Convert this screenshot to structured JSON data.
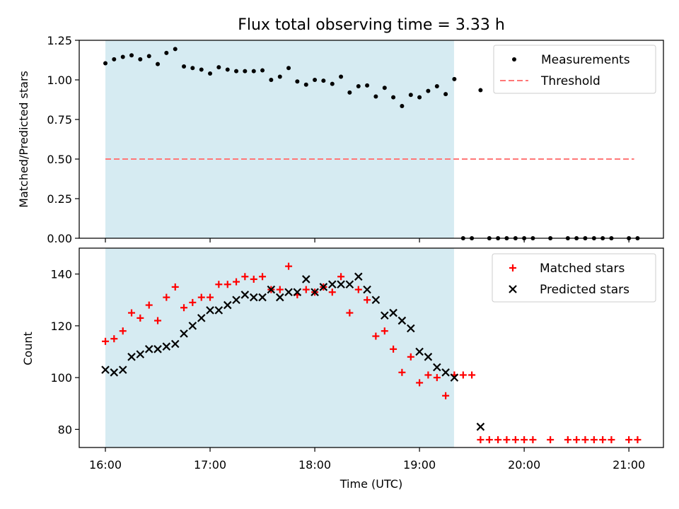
{
  "colors": {
    "shade": "#add8e6",
    "measurement": "#000000",
    "threshold": "#ff7777",
    "matched": "#ff0000",
    "predicted": "#000000"
  },
  "chart_data": [
    {
      "type": "scatter",
      "title": "Flux total observing time = 3.33 h",
      "ylabel": "Matched/Predicted stars",
      "xlabel": "",
      "xlim": [
        15.75,
        21.33
      ],
      "ylim": [
        0,
        1.25
      ],
      "yticks": [
        0,
        0.25,
        0.5,
        0.75,
        1.0,
        1.25
      ],
      "ytick_labels": [
        "0.00",
        "0.25",
        "0.50",
        "0.75",
        "1.00",
        "1.25"
      ],
      "shaded_span": [
        16.0,
        19.33
      ],
      "legend_position": "top-right",
      "threshold": {
        "name": "Threshold",
        "y": 0.5,
        "x_range": [
          16.0,
          21.05
        ]
      },
      "series": [
        {
          "name": "Measurements",
          "x": [
            16.0,
            16.083,
            16.167,
            16.25,
            16.333,
            16.417,
            16.5,
            16.583,
            16.667,
            16.75,
            16.833,
            16.917,
            17.0,
            17.083,
            17.167,
            17.25,
            17.333,
            17.417,
            17.5,
            17.583,
            17.667,
            17.75,
            17.833,
            17.917,
            18.0,
            18.083,
            18.167,
            18.25,
            18.333,
            18.417,
            18.5,
            18.583,
            18.667,
            18.75,
            18.833,
            18.917,
            19.0,
            19.083,
            19.167,
            19.25,
            19.333,
            19.417,
            19.5,
            19.583,
            19.667,
            19.75,
            19.833,
            19.917,
            20.0,
            20.083,
            20.25,
            20.417,
            20.5,
            20.583,
            20.667,
            20.75,
            20.833,
            21.0,
            21.083
          ],
          "y": [
            1.105,
            1.13,
            1.145,
            1.155,
            1.13,
            1.15,
            1.1,
            1.17,
            1.195,
            1.085,
            1.075,
            1.065,
            1.04,
            1.08,
            1.065,
            1.055,
            1.055,
            1.055,
            1.06,
            1.0,
            1.02,
            1.075,
            0.99,
            0.97,
            1.0,
            0.995,
            0.975,
            1.02,
            0.92,
            0.96,
            0.965,
            0.895,
            0.95,
            0.89,
            0.835,
            0.905,
            0.89,
            0.93,
            0.96,
            0.91,
            1.005,
            0,
            0,
            0.935,
            0,
            0,
            0,
            0,
            0,
            0,
            0,
            0,
            0,
            0,
            0,
            0,
            0,
            0,
            0
          ]
        }
      ]
    },
    {
      "type": "scatter",
      "title": "",
      "ylabel": "Count",
      "xlabel": "Time (UTC)",
      "xlim": [
        15.75,
        21.33
      ],
      "ylim": [
        73,
        150
      ],
      "yticks": [
        80,
        100,
        120,
        140
      ],
      "ytick_labels": [
        "80",
        "100",
        "120",
        "140"
      ],
      "xticks": [
        16,
        17,
        18,
        19,
        20,
        21
      ],
      "xtick_labels": [
        "16:00",
        "17:00",
        "18:00",
        "19:00",
        "20:00",
        "21:00"
      ],
      "shaded_span": [
        16.0,
        19.33
      ],
      "legend_position": "top-right",
      "series": [
        {
          "name": "Matched stars",
          "x": [
            16.0,
            16.083,
            16.167,
            16.25,
            16.333,
            16.417,
            16.5,
            16.583,
            16.667,
            16.75,
            16.833,
            16.917,
            17.0,
            17.083,
            17.167,
            17.25,
            17.333,
            17.417,
            17.5,
            17.583,
            17.667,
            17.75,
            17.833,
            17.917,
            18.0,
            18.083,
            18.167,
            18.25,
            18.333,
            18.417,
            18.5,
            18.583,
            18.667,
            18.75,
            18.833,
            18.917,
            19.0,
            19.083,
            19.167,
            19.25,
            19.333,
            19.417,
            19.5,
            19.583,
            19.667,
            19.75,
            19.833,
            19.917,
            20.0,
            20.083,
            20.25,
            20.417,
            20.5,
            20.583,
            20.667,
            20.75,
            20.833,
            21.0,
            21.083
          ],
          "y": [
            114,
            115,
            118,
            125,
            123,
            128,
            122,
            131,
            135,
            127,
            129,
            131,
            131,
            136,
            136,
            137,
            139,
            138,
            139,
            134,
            134,
            143,
            132,
            134,
            133,
            135,
            133,
            139,
            125,
            134,
            130,
            116,
            118,
            111,
            102,
            108,
            98,
            101,
            100,
            93,
            101,
            101,
            101,
            76,
            76,
            76,
            76,
            76,
            76,
            76,
            76,
            76,
            76,
            76,
            76,
            76,
            76,
            76,
            76
          ]
        },
        {
          "name": "Predicted stars",
          "x": [
            16.0,
            16.083,
            16.167,
            16.25,
            16.333,
            16.417,
            16.5,
            16.583,
            16.667,
            16.75,
            16.833,
            16.917,
            17.0,
            17.083,
            17.167,
            17.25,
            17.333,
            17.417,
            17.5,
            17.583,
            17.667,
            17.75,
            17.833,
            17.917,
            18.0,
            18.083,
            18.167,
            18.25,
            18.333,
            18.417,
            18.5,
            18.583,
            18.667,
            18.75,
            18.833,
            18.917,
            19.0,
            19.083,
            19.167,
            19.25,
            19.333,
            19.583
          ],
          "y": [
            103,
            102,
            103,
            108,
            109,
            111,
            111,
            112,
            113,
            117,
            120,
            123,
            126,
            126,
            128,
            130,
            132,
            131,
            131,
            134,
            131,
            133,
            133,
            138,
            133,
            135,
            136,
            136,
            136,
            139,
            134,
            130,
            124,
            125,
            122,
            119,
            110,
            108,
            104,
            102,
            100,
            81
          ]
        }
      ]
    }
  ]
}
